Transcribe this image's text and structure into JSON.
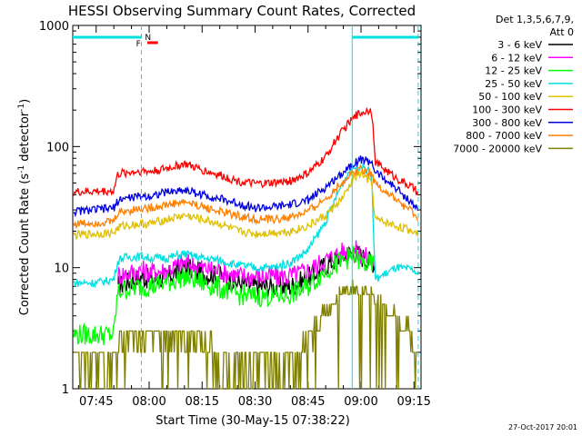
{
  "chart_data": {
    "type": "line",
    "title": "HESSI Observing Summary Count Rates, Corrected",
    "xlabel": "Start Time (30-May-15 07:38:22)",
    "ylabel_main": "Corrected Count Rate (s",
    "ylabel_sup1": "-1",
    "ylabel_mid": " detector",
    "ylabel_sup2": "-1",
    "ylabel_end": ")",
    "y_scale": "log",
    "ylim": [
      1,
      1000
    ],
    "xlim": [
      "07:38:22",
      "09:17:00"
    ],
    "x_ticks": [
      {
        "label": "07:45",
        "min": 405
      },
      {
        "label": "08:00",
        "min": 420
      },
      {
        "label": "08:15",
        "min": 435
      },
      {
        "label": "08:30",
        "min": 450
      },
      {
        "label": "08:45",
        "min": 465
      },
      {
        "label": "09:00",
        "min": 480
      },
      {
        "label": "09:15",
        "min": 495
      }
    ],
    "y_ticks": [
      {
        "label": "1",
        "value": 1
      },
      {
        "label": "10",
        "value": 10
      },
      {
        "label": "100",
        "value": 100
      },
      {
        "label": "1000",
        "value": 1000
      }
    ],
    "legend_header": [
      "Det 1,3,5,6,7,9,",
      "Att 0"
    ],
    "legend_position": "right",
    "flags": [
      {
        "label": "N",
        "color": "#00e0e0"
      },
      {
        "label": "F",
        "color": "#ff0000"
      }
    ],
    "vlines": [
      {
        "min": 477.5,
        "style": "solid",
        "color": "#00e0e0"
      },
      {
        "min": 417.8,
        "style": "dashed",
        "color": "#00e0e0"
      },
      {
        "min": 496.2,
        "style": "dashed",
        "color": "#00e0e0"
      }
    ],
    "series": [
      {
        "name": "3 - 6 keV",
        "color": "#000000",
        "t": [
          398.4,
          410,
          411,
          412,
          418,
          420,
          425,
          430,
          435,
          440,
          445,
          450,
          455,
          460,
          465,
          470,
          475,
          478,
          480,
          482,
          484
        ],
        "v": [
          null,
          null,
          6.8,
          7.2,
          8.5,
          8,
          8.3,
          10,
          9,
          8.5,
          7.5,
          7,
          7,
          7,
          8.2,
          10.5,
          12.5,
          13.5,
          12.5,
          11.5,
          11
        ]
      },
      {
        "name": "6 - 12 keV",
        "color": "#ff00ff",
        "t": [
          398.4,
          411,
          412,
          418,
          420,
          425,
          430,
          435,
          440,
          445,
          450,
          455,
          460,
          465,
          470,
          475,
          478,
          480,
          482,
          484
        ],
        "v": [
          null,
          8.5,
          8.8,
          9.5,
          9.2,
          9.5,
          11,
          10,
          9.5,
          8.5,
          8.5,
          8.5,
          8.5,
          9.5,
          11.5,
          13.5,
          14,
          13,
          12,
          11.5
        ]
      },
      {
        "name": "12 - 25 keV",
        "color": "#00ff00",
        "t": [
          398.4,
          405,
          410,
          411,
          412,
          418,
          420,
          425,
          430,
          435,
          440,
          445,
          450,
          455,
          460,
          465,
          470,
          475,
          478,
          480,
          482,
          484
        ],
        "v": [
          2.8,
          2.8,
          2.8,
          6,
          6.5,
          7,
          7,
          7.5,
          8.5,
          7.5,
          6.8,
          6,
          5.8,
          5.8,
          6,
          7,
          9.5,
          11.5,
          12.5,
          11,
          10.5,
          10.5
        ]
      },
      {
        "name": "25 - 50 keV",
        "color": "#00e0e0",
        "t": [
          398.4,
          405,
          410,
          411,
          412,
          418,
          420,
          425,
          430,
          435,
          440,
          445,
          450,
          455,
          460,
          465,
          470,
          474,
          477,
          480,
          483,
          484,
          490,
          495,
          496.2
        ],
        "v": [
          7.5,
          7.5,
          8,
          11,
          12,
          12.5,
          12,
          12,
          13,
          12,
          11.5,
          10.5,
          10,
          10,
          11,
          14,
          24,
          45,
          65,
          70,
          60,
          8,
          10,
          9.5,
          8.5
        ]
      },
      {
        "name": "50 - 100 keV",
        "color": "#e0c000",
        "t": [
          398.4,
          410,
          411,
          412,
          418,
          420,
          425,
          430,
          435,
          440,
          445,
          450,
          455,
          460,
          465,
          470,
          475,
          478,
          480,
          483,
          484,
          490,
          495,
          496.2
        ],
        "v": [
          18.5,
          19.5,
          21,
          22,
          23,
          23,
          25,
          27,
          25,
          23,
          20,
          19,
          19.5,
          20,
          22,
          27,
          38,
          55,
          60,
          50,
          25,
          22,
          20,
          19
        ]
      },
      {
        "name": "100 - 300 keV",
        "color": "#ff0000",
        "t": [
          398.4,
          410,
          411,
          412,
          418,
          420,
          425,
          430,
          435,
          440,
          445,
          450,
          455,
          460,
          465,
          470,
          473,
          476,
          479,
          481,
          483,
          484,
          490,
          495,
          496.2
        ],
        "v": [
          42,
          43,
          58,
          60,
          63,
          62,
          66,
          72,
          64,
          58,
          52,
          49,
          50,
          52,
          60,
          82,
          115,
          150,
          185,
          195,
          205,
          75,
          55,
          45,
          40
        ]
      },
      {
        "name": "300 - 800 keV",
        "color": "#0000e0",
        "t": [
          398.4,
          410,
          411,
          412,
          418,
          420,
          425,
          430,
          435,
          440,
          445,
          450,
          455,
          460,
          465,
          470,
          475,
          478,
          480,
          483,
          484,
          490,
          495,
          496.2
        ],
        "v": [
          29,
          31,
          35,
          37,
          39,
          39,
          42,
          44,
          40,
          37,
          34,
          31,
          31.5,
          33,
          36,
          46,
          62,
          74,
          78,
          75,
          62,
          45,
          33,
          29
        ]
      },
      {
        "name": "800 - 7000 keV",
        "color": "#ff8000",
        "t": [
          398.4,
          410,
          411,
          412,
          418,
          420,
          425,
          430,
          435,
          440,
          445,
          450,
          455,
          460,
          465,
          470,
          475,
          478,
          480,
          483,
          484,
          490,
          495,
          496.2
        ],
        "v": [
          23,
          24,
          28,
          29,
          31,
          31,
          33,
          35,
          32,
          29,
          27,
          25,
          25,
          26,
          29,
          37,
          52,
          62,
          66,
          60,
          50,
          36,
          28,
          23
        ]
      },
      {
        "name": "7000 - 20000 keV",
        "color": "#808000",
        "t": [
          398.4,
          405,
          410,
          411,
          418,
          420,
          430,
          435,
          440,
          445,
          455,
          462,
          465,
          470,
          475,
          478,
          480,
          483,
          484,
          490,
          495,
          496.2
        ],
        "v": [
          1.8,
          1.9,
          1.8,
          2.8,
          2.6,
          2.8,
          2.8,
          2.6,
          1.8,
          1.6,
          1.6,
          1.8,
          2.6,
          4.5,
          6.5,
          7,
          6.5,
          6,
          5.5,
          4,
          2.5,
          1.5
        ]
      }
    ]
  },
  "footer": {
    "date": "27-Oct-2017 20:01"
  }
}
